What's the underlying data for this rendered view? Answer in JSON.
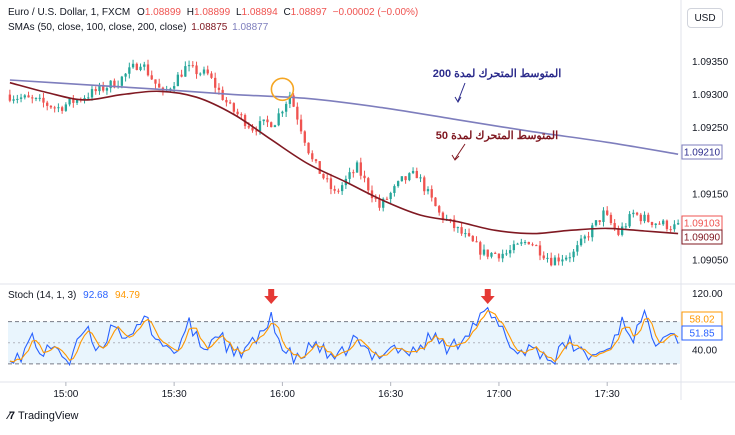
{
  "symbol_line": {
    "symbol": "Euro / U.S. Dollar, 1, FXCM",
    "o_label": "O",
    "o": "1.08899",
    "h_label": "H",
    "h": "1.08899",
    "l_label": "L",
    "l": "1.08894",
    "c_label": "C",
    "c": "1.08897",
    "change": "−0.00002 (−0.00%)"
  },
  "sma_line": {
    "label": "SMAs (50, close, 100, close, 200, close)",
    "v1": "1.08875",
    "v2": "1.08877"
  },
  "stoch_line": {
    "label": "Stoch (14, 1, 3)",
    "k": "92.68",
    "d": "94.79"
  },
  "currency_button": "USD",
  "brand": {
    "name": "TradingView"
  },
  "colors": {
    "up": "#26a69a",
    "down": "#ef5350",
    "sma50": "#801922",
    "sma200": "#7e7ebd",
    "stoch_k": "#2962ff",
    "stoch_d": "#ff9800",
    "annot200": "#2c2c8c",
    "annot50": "#801922",
    "arrow": "#e53935",
    "circle": "#f5a623"
  },
  "chart_data": [
    {
      "type": "candlestick",
      "x_axis": {
        "ticks": [
          "15:00",
          "15:30",
          "16:00",
          "16:30",
          "17:00",
          "17:30"
        ]
      },
      "y_axis": {
        "ticks": [
          "1.09350",
          "1.09300",
          "1.09250",
          "1.09150",
          "1.09050"
        ],
        "ylim": [
          1.0902,
          1.0939
        ]
      },
      "price_labels": {
        "sma200": "1.09210",
        "price": "1.09103",
        "sma50": "1.09090"
      },
      "annotations": {
        "sma200": "المتوسط المتحرك لمدة 200",
        "sma50": "المتوسط المتحرك لمدة 50"
      },
      "series": [
        {
          "name": "SMA 200",
          "points": [
            [
              0,
              1.09322
            ],
            [
              20,
              1.09315
            ],
            [
              40,
              1.09308
            ],
            [
              60,
              1.093
            ],
            [
              80,
              1.09294
            ],
            [
              100,
              1.0928
            ],
            [
              120,
              1.09262
            ],
            [
              140,
              1.09244
            ],
            [
              160,
              1.09228
            ],
            [
              179,
              1.0921
            ]
          ]
        },
        {
          "name": "SMA 50",
          "points": [
            [
              0,
              1.09318
            ],
            [
              10,
              1.09303
            ],
            [
              20,
              1.09292
            ],
            [
              30,
              1.093
            ],
            [
              40,
              1.09305
            ],
            [
              50,
              1.09296
            ],
            [
              60,
              1.0927
            ],
            [
              70,
              1.09232
            ],
            [
              80,
              1.09195
            ],
            [
              90,
              1.09168
            ],
            [
              100,
              1.0914
            ],
            [
              110,
              1.09118
            ],
            [
              120,
              1.09108
            ],
            [
              130,
              1.09095
            ],
            [
              140,
              1.0909
            ],
            [
              150,
              1.09095
            ],
            [
              160,
              1.09098
            ],
            [
              170,
              1.09094
            ],
            [
              179,
              1.0909
            ]
          ]
        }
      ],
      "anchors": [
        [
          0,
          1.093
        ],
        [
          8,
          1.0929
        ],
        [
          14,
          1.0928
        ],
        [
          22,
          1.093
        ],
        [
          30,
          1.0932
        ],
        [
          36,
          1.0935
        ],
        [
          42,
          1.093
        ],
        [
          48,
          1.0934
        ],
        [
          54,
          1.0933
        ],
        [
          60,
          1.0928
        ],
        [
          66,
          1.0925
        ],
        [
          72,
          1.0926
        ],
        [
          76,
          1.093
        ],
        [
          82,
          1.092
        ],
        [
          88,
          1.0915
        ],
        [
          94,
          1.0919
        ],
        [
          100,
          1.0913
        ],
        [
          106,
          1.0917
        ],
        [
          110,
          1.0918
        ],
        [
          116,
          1.0912
        ],
        [
          122,
          1.0909
        ],
        [
          128,
          1.0906
        ],
        [
          134,
          1.0906
        ],
        [
          140,
          1.0908
        ],
        [
          146,
          1.0905
        ],
        [
          152,
          1.0906
        ],
        [
          156,
          1.0909
        ],
        [
          160,
          1.0912
        ],
        [
          164,
          1.0909
        ],
        [
          168,
          1.0912
        ],
        [
          172,
          1.0911
        ],
        [
          179,
          1.091
        ]
      ],
      "candle_count": 180
    },
    {
      "type": "line",
      "title": "Stoch (14, 1, 3)",
      "y_axis": {
        "ticks": [
          "120.00",
          "40.00"
        ],
        "ylim": [
          0,
          125
        ],
        "band": [
          20,
          80
        ]
      },
      "price_labels": {
        "k": "58.02",
        "d": "51.85"
      },
      "markers_at_x": [
        70,
        128
      ],
      "series": [
        {
          "name": "%K",
          "anchors": [
            [
              0,
              35
            ],
            [
              3,
              25
            ],
            [
              6,
              60
            ],
            [
              9,
              30
            ],
            [
              12,
              50
            ],
            [
              16,
              20
            ],
            [
              20,
              70
            ],
            [
              24,
              40
            ],
            [
              28,
              80
            ],
            [
              32,
              50
            ],
            [
              36,
              85
            ],
            [
              40,
              55
            ],
            [
              44,
              35
            ],
            [
              48,
              75
            ],
            [
              52,
              40
            ],
            [
              56,
              65
            ],
            [
              60,
              30
            ],
            [
              64,
              45
            ],
            [
              68,
              60
            ],
            [
              70,
              92
            ],
            [
              73,
              40
            ],
            [
              77,
              25
            ],
            [
              82,
              50
            ],
            [
              87,
              20
            ],
            [
              92,
              55
            ],
            [
              97,
              30
            ],
            [
              102,
              45
            ],
            [
              108,
              35
            ],
            [
              113,
              60
            ],
            [
              118,
              40
            ],
            [
              123,
              70
            ],
            [
              128,
              94
            ],
            [
              132,
              65
            ],
            [
              136,
              35
            ],
            [
              140,
              45
            ],
            [
              145,
              25
            ],
            [
              150,
              50
            ],
            [
              155,
              30
            ],
            [
              160,
              40
            ],
            [
              164,
              80
            ],
            [
              167,
              60
            ],
            [
              170,
              85
            ],
            [
              173,
              55
            ],
            [
              176,
              70
            ],
            [
              179,
              58
            ]
          ]
        },
        {
          "name": "%D",
          "lag": 2
        }
      ]
    }
  ]
}
